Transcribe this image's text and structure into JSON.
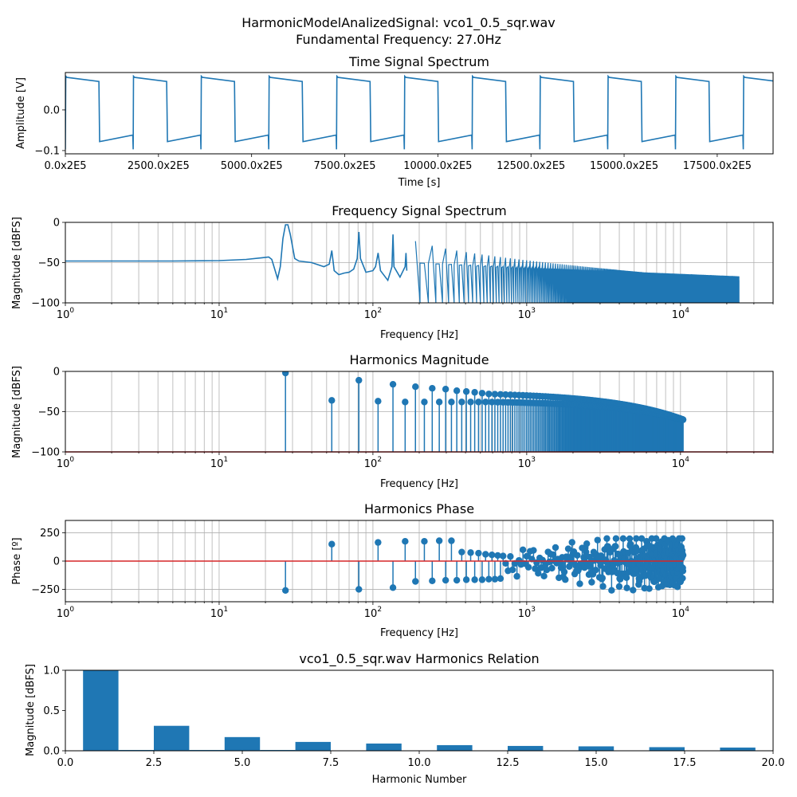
{
  "figure": {
    "title_line1": "HarmonicModelAnalizedSignal: vco1_0.5_sqr.wav",
    "title_line2": "Fundamental Frequency: 27.0Hz"
  },
  "colors": {
    "series": "#1f77b4",
    "baseline": "#d62728",
    "grid": "#b0b0b0"
  },
  "chart_data": [
    {
      "type": "line",
      "title": "Time Signal Spectrum",
      "xlabel": "Time [s]",
      "ylabel": "Amplitude [V]",
      "xlim": [
        0,
        19000
      ],
      "ylim": [
        -0.108,
        0.092
      ],
      "x_ticks": [
        {
          "v": 0,
          "label": "0.0x2E5"
        },
        {
          "v": 2500,
          "label": "2500.0x2E5"
        },
        {
          "v": 5000,
          "label": "5000.0x2E5"
        },
        {
          "v": 7500,
          "label": "7500.0x2E5"
        },
        {
          "v": 10000,
          "label": "10000.0x2E5"
        },
        {
          "v": 12500,
          "label": "12500.0x2E5"
        },
        {
          "v": 15000,
          "label": "15000.0x2E5"
        },
        {
          "v": 17500,
          "label": "17500.0x2E5"
        }
      ],
      "y_ticks": [
        {
          "v": -0.1,
          "label": "−0.1"
        },
        {
          "v": 0.0,
          "label": "0.0"
        }
      ],
      "grid": false,
      "waveform": {
        "period": 1820,
        "high_start": 0.08,
        "high_end": 0.07,
        "low_start": -0.078,
        "low_end": -0.062,
        "spike": -0.097
      }
    },
    {
      "type": "line",
      "title": "Frequency Signal Spectrum",
      "xlabel": "Frequency [Hz]",
      "ylabel": "Magnitude [dBFS]",
      "xscale": "log",
      "xlim": [
        1,
        40000
      ],
      "ylim": [
        -100,
        0
      ],
      "x_ticks": [
        1,
        10,
        100,
        1000,
        10000
      ],
      "y_ticks": [
        0,
        -50,
        -100
      ],
      "grid": true,
      "fundamental": 27,
      "points": [
        [
          1,
          -48
        ],
        [
          5,
          -48
        ],
        [
          10,
          -47.5
        ],
        [
          15,
          -46
        ],
        [
          19,
          -44
        ],
        [
          21,
          -43
        ],
        [
          22,
          -46
        ],
        [
          24,
          -70
        ],
        [
          25,
          -55
        ],
        [
          26,
          -20
        ],
        [
          27,
          -3
        ],
        [
          28,
          -3
        ],
        [
          29,
          -15
        ],
        [
          31,
          -45
        ],
        [
          33,
          -48
        ],
        [
          40,
          -50
        ],
        [
          48,
          -55
        ],
        [
          52,
          -52
        ],
        [
          54,
          -35
        ],
        [
          56,
          -60
        ],
        [
          60,
          -65
        ],
        [
          65,
          -63
        ],
        [
          70,
          -62
        ],
        [
          75,
          -58
        ],
        [
          79,
          -45
        ],
        [
          81,
          -12
        ],
        [
          83,
          -45
        ],
        [
          90,
          -62
        ],
        [
          100,
          -60
        ],
        [
          104,
          -55
        ],
        [
          108,
          -38
        ],
        [
          112,
          -60
        ],
        [
          125,
          -72
        ],
        [
          133,
          -55
        ],
        [
          135,
          -15
        ],
        [
          137,
          -55
        ],
        [
          150,
          -68
        ],
        [
          162,
          -55
        ],
        [
          164,
          -38
        ],
        [
          166,
          -60
        ]
      ],
      "dense_region": {
        "from": 170,
        "to": 24000,
        "peak_start": -18,
        "peak_end": -72,
        "floor": -100,
        "mid_start": -50,
        "mid_end": -72
      }
    },
    {
      "type": "stem",
      "title": "Harmonics Magnitude",
      "xlabel": "Frequency [Hz]",
      "ylabel": "Magnitude [dBFS]",
      "xscale": "log",
      "xlim": [
        1,
        40000
      ],
      "ylim": [
        -100,
        0
      ],
      "x_ticks": [
        1,
        10,
        100,
        1000,
        10000
      ],
      "y_ticks": [
        0,
        -50,
        -100
      ],
      "grid": true,
      "fundamental": 27,
      "harmonic_count": 385,
      "odd_values_first": [
        -2,
        -11,
        -16,
        -19,
        -21,
        -22,
        -24,
        -25,
        -26,
        -27,
        -28
      ],
      "even_values_first": [
        -36,
        -37,
        -38,
        -38,
        -38,
        -38,
        -38,
        -38,
        -38,
        -38
      ],
      "tail_value": -60,
      "stem_bottom": -100
    },
    {
      "type": "stem",
      "title": "Harmonics Phase",
      "xlabel": "Frequency [Hz]",
      "ylabel": "Phase [º]",
      "xscale": "log",
      "xlim": [
        1,
        40000
      ],
      "ylim": [
        -360,
        360
      ],
      "x_ticks": [
        1,
        10,
        100,
        1000,
        10000
      ],
      "y_ticks": [
        250,
        0,
        -250
      ],
      "grid": true,
      "fundamental": 27,
      "harmonic_count": 385,
      "values_first": [
        -260,
        150,
        -250,
        165,
        -235,
        175,
        -180,
        175,
        -175,
        180,
        -170,
        180,
        -170,
        80,
        -165,
        75,
        -165,
        70,
        -165,
        60,
        -160,
        55,
        -160,
        50,
        -155,
        45
      ],
      "baseline": 0
    },
    {
      "type": "bar",
      "title": "vco1_0.5_sqr.wav Harmonics Relation",
      "xlabel": "Harmonic Number",
      "ylabel": "Magnitude [dBFS]",
      "xlim": [
        0,
        20
      ],
      "ylim": [
        0,
        1.0
      ],
      "x_ticks": [
        {
          "v": 0,
          "label": "0.0"
        },
        {
          "v": 2.5,
          "label": "2.5"
        },
        {
          "v": 5,
          "label": "5.0"
        },
        {
          "v": 7.5,
          "label": "7.5"
        },
        {
          "v": 10,
          "label": "10.0"
        },
        {
          "v": 12.5,
          "label": "12.5"
        },
        {
          "v": 15,
          "label": "15.0"
        },
        {
          "v": 17.5,
          "label": "17.5"
        },
        {
          "v": 20,
          "label": "20.0"
        }
      ],
      "y_ticks": [
        {
          "v": 0,
          "label": "0.0"
        },
        {
          "v": 0.5,
          "label": "0.5"
        },
        {
          "v": 1.0,
          "label": "1.0"
        }
      ],
      "grid": false,
      "categories": [
        1,
        2,
        3,
        4,
        5,
        6,
        7,
        8,
        9,
        10,
        11,
        12,
        13,
        14,
        15,
        16,
        17,
        18,
        19,
        20
      ],
      "values": [
        1.0,
        0.01,
        0.31,
        0.01,
        0.17,
        0.01,
        0.11,
        0.005,
        0.09,
        0.005,
        0.07,
        0.005,
        0.06,
        0.005,
        0.055,
        0.005,
        0.045,
        0.005,
        0.04,
        0.005
      ]
    }
  ]
}
